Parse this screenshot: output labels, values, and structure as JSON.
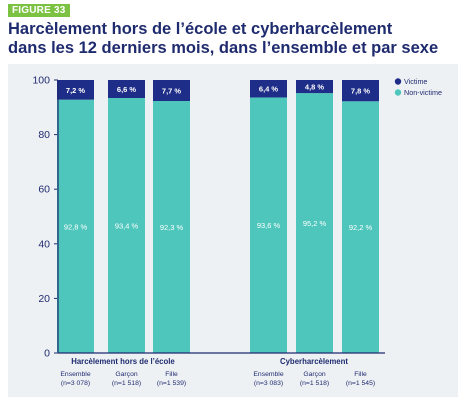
{
  "figure_badge": "FIGURE 33",
  "title_line1": "Harcèlement hors de l’école et cyberharcèlement",
  "title_line2": "dans les 12 derniers mois, dans l’ensemble et par sexe",
  "colors": {
    "victime": "#1e2d87",
    "non_victime": "#4fc6bc",
    "axis": "#1f2b6f",
    "background": "#eef1f4",
    "title": "#1f2b6f",
    "badge": "#7cc242"
  },
  "chart_data": {
    "type": "bar",
    "stacked": true,
    "ylim": [
      0,
      100
    ],
    "yticks": [
      0,
      20,
      40,
      60,
      80,
      100
    ],
    "legend": [
      "Victime",
      "Non-victime"
    ],
    "legend_position": "top-right",
    "groups": [
      {
        "name": "Harcèlement hors de l’école",
        "bars": [
          {
            "label": "Ensemble",
            "n": "(n=3 078)",
            "victime": 7.2,
            "non_victime": 92.8,
            "victime_label": "7,2 %",
            "non_victime_label": "92,8 %"
          },
          {
            "label": "Garçon",
            "n": "(n=1 518)",
            "victime": 6.6,
            "non_victime": 93.4,
            "victime_label": "6,6 %",
            "non_victime_label": "93,4 %"
          },
          {
            "label": "Fille",
            "n": "(n=1 539)",
            "victime": 7.7,
            "non_victime": 92.3,
            "victime_label": "7,7 %",
            "non_victime_label": "92,3 %"
          }
        ]
      },
      {
        "name": "Cyberharcèlement",
        "bars": [
          {
            "label": "Ensemble",
            "n": "(n=3 083)",
            "victime": 6.4,
            "non_victime": 93.6,
            "victime_label": "6,4 %",
            "non_victime_label": "93,6 %"
          },
          {
            "label": "Garçon",
            "n": "(n=1 518)",
            "victime": 4.8,
            "non_victime": 95.2,
            "victime_label": "4,8 %",
            "non_victime_label": "95,2 %"
          },
          {
            "label": "Fille",
            "n": "(n=1 545)",
            "victime": 7.8,
            "non_victime": 92.2,
            "victime_label": "7,8 %",
            "non_victime_label": "92,2 %"
          }
        ]
      }
    ]
  }
}
